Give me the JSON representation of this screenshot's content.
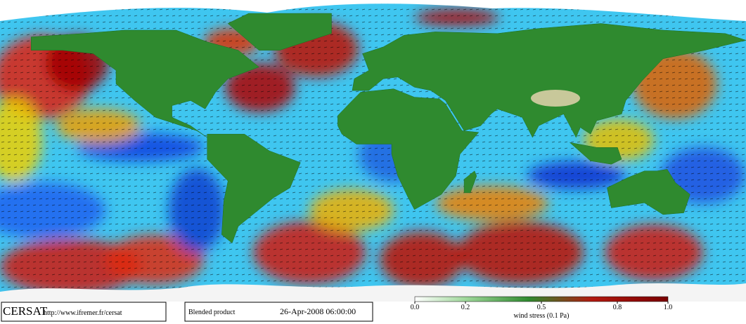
{
  "footer": {
    "logo": "CERSAT",
    "url": "http://www.ifremer.fr/cersat",
    "product": "Blended product",
    "date": "26-Apr-2008 06:00:00"
  },
  "colorbar": {
    "label": "wind stress (0.1 Pa)",
    "lim": [
      0,
      1
    ],
    "ticks": [
      {
        "value": 0,
        "label": "0.0"
      },
      0.2,
      0.5,
      0.8,
      {
        "value": 1,
        "label": "1.0"
      }
    ]
  }
}
